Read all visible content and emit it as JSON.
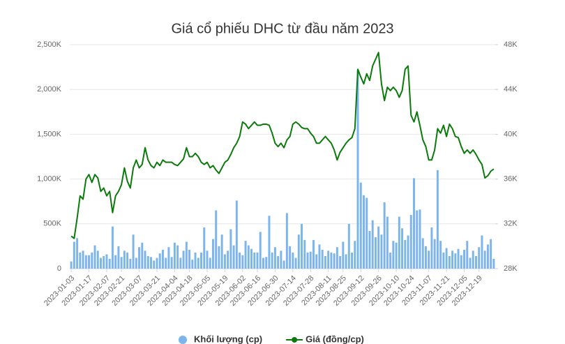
{
  "chart_data": {
    "type": "combo",
    "title": "Giá cổ phiếu DHC từ đầu năm 2023",
    "categories": [
      "2023-01-03",
      null,
      null,
      null,
      null,
      null,
      "2023-01-17",
      null,
      null,
      null,
      null,
      null,
      "2023-02-07",
      null,
      null,
      null,
      null,
      "2023-02-21",
      null,
      null,
      null,
      null,
      null,
      "2023-03-07",
      null,
      null,
      null,
      null,
      null,
      "2023-03-21",
      null,
      null,
      null,
      null,
      null,
      "2023-04-04",
      null,
      null,
      null,
      null,
      "2023-04-18",
      null,
      null,
      null,
      null,
      null,
      "2023-05-05",
      null,
      null,
      null,
      null,
      null,
      "2023-05-19",
      null,
      null,
      null,
      null,
      null,
      "2023-06-02",
      null,
      null,
      null,
      null,
      "2023-06-16",
      null,
      null,
      null,
      null,
      null,
      "2023-06-30",
      null,
      null,
      null,
      null,
      null,
      "2023-07-14",
      null,
      null,
      null,
      null,
      null,
      "2023-07-28",
      null,
      null,
      null,
      null,
      null,
      "2023-08-11",
      null,
      null,
      null,
      null,
      "2023-08-25",
      null,
      null,
      null,
      null,
      null,
      "2023-09-12",
      null,
      null,
      null,
      null,
      null,
      "2023-09-26",
      null,
      null,
      null,
      null,
      null,
      "2023-10-10",
      null,
      null,
      null,
      null,
      "2023-10-24",
      null,
      null,
      null,
      null,
      null,
      "2023-11-07",
      null,
      null,
      null,
      null,
      null,
      "2023-11-21",
      null,
      null,
      null,
      null,
      null,
      "2023-12-05",
      null,
      null,
      null,
      null,
      "2023-12-19",
      null,
      null,
      null,
      null,
      null
    ],
    "series": [
      {
        "name": "Khối lượng (cp)",
        "type": "bar",
        "color": "#7cb5ec",
        "values": [
          80000,
          300000,
          340000,
          180000,
          200000,
          150000,
          150000,
          180000,
          260000,
          200000,
          120000,
          140000,
          160000,
          110000,
          470000,
          150000,
          250000,
          130000,
          200000,
          180000,
          110000,
          380000,
          120000,
          240000,
          290000,
          200000,
          140000,
          130000,
          90000,
          120000,
          170000,
          210000,
          120000,
          240000,
          130000,
          290000,
          260000,
          120000,
          200000,
          300000,
          210000,
          100000,
          180000,
          120000,
          180000,
          460000,
          200000,
          120000,
          330000,
          650000,
          250000,
          380000,
          160000,
          200000,
          440000,
          260000,
          760000,
          180000,
          150000,
          310000,
          260000,
          220000,
          180000,
          180000,
          410000,
          120000,
          130000,
          590000,
          180000,
          240000,
          140000,
          200000,
          90000,
          620000,
          250000,
          180000,
          120000,
          380000,
          500000,
          320000,
          180000,
          190000,
          320000,
          160000,
          270000,
          210000,
          140000,
          200000,
          180000,
          170000,
          240000,
          140000,
          300000,
          160000,
          500000,
          180000,
          310000,
          2220000,
          960000,
          820000,
          790000,
          420000,
          540000,
          350000,
          470000,
          380000,
          740000,
          580000,
          180000,
          310000,
          290000,
          580000,
          450000,
          320000,
          370000,
          600000,
          1010000,
          650000,
          660000,
          340000,
          250000,
          200000,
          460000,
          330000,
          1100000,
          310000,
          180000,
          230000,
          140000,
          200000,
          170000,
          220000,
          150000,
          210000,
          310000,
          120000,
          200000,
          140000,
          240000,
          370000,
          200000,
          270000,
          330000,
          110000
        ]
      },
      {
        "name": "Giá (đồng/cp)",
        "type": "line",
        "axis": "y2",
        "color": "#0b7a0b",
        "values": [
          30900,
          30700,
          32500,
          34500,
          34200,
          36000,
          36400,
          35700,
          36400,
          36100,
          34900,
          35200,
          34500,
          34900,
          33000,
          34500,
          34900,
          35500,
          37000,
          35800,
          35200,
          37000,
          37700,
          37000,
          37300,
          38800,
          37700,
          37200,
          37000,
          37500,
          37200,
          37700,
          37500,
          37500,
          37500,
          37300,
          37200,
          37500,
          37800,
          38800,
          38000,
          38000,
          38300,
          38000,
          37500,
          37300,
          37500,
          37000,
          37200,
          36800,
          36500,
          37000,
          37500,
          37700,
          38200,
          38800,
          39200,
          39800,
          41100,
          40900,
          40500,
          40800,
          41100,
          40800,
          40800,
          40900,
          40900,
          40800,
          40100,
          39200,
          38900,
          39200,
          38800,
          39500,
          39800,
          40900,
          41100,
          40900,
          40600,
          40500,
          40500,
          40100,
          39800,
          39200,
          39200,
          39500,
          39800,
          39500,
          39200,
          38600,
          37700,
          38400,
          38800,
          39200,
          39500,
          39700,
          40500,
          45800,
          45100,
          44500,
          45400,
          44800,
          46100,
          46700,
          47300,
          44500,
          43000,
          44200,
          43900,
          44200,
          43900,
          43300,
          43900,
          45800,
          46100,
          41700,
          41100,
          42000,
          40800,
          39500,
          38900,
          37700,
          37700,
          38600,
          40500,
          40100,
          40800,
          39800,
          40900,
          40500,
          39800,
          39700,
          38900,
          38300,
          38600,
          38300,
          38600,
          38200,
          37700,
          37300,
          36100,
          36300,
          36700,
          36900
        ]
      }
    ],
    "ylim": [
      0,
      2500000
    ],
    "yticks": [
      0,
      {
        "value": 500000,
        "label": "500K"
      },
      {
        "value": 1000000,
        "label": "1,000K"
      },
      {
        "value": 1500000,
        "label": "1,500K"
      },
      {
        "value": 2000000,
        "label": "2,000K"
      },
      {
        "value": 2500000,
        "label": "2,500K"
      }
    ],
    "y2lim": [
      28000,
      48000
    ],
    "y2ticks": [
      {
        "value": 28000,
        "label": "28K"
      },
      {
        "value": 32000,
        "label": "32K"
      },
      {
        "value": 36000,
        "label": "36K"
      },
      {
        "value": 40000,
        "label": "40K"
      },
      {
        "value": 44000,
        "label": "44K"
      },
      {
        "value": 48000,
        "label": "48K"
      }
    ],
    "grid": true,
    "legend": "bottom"
  }
}
